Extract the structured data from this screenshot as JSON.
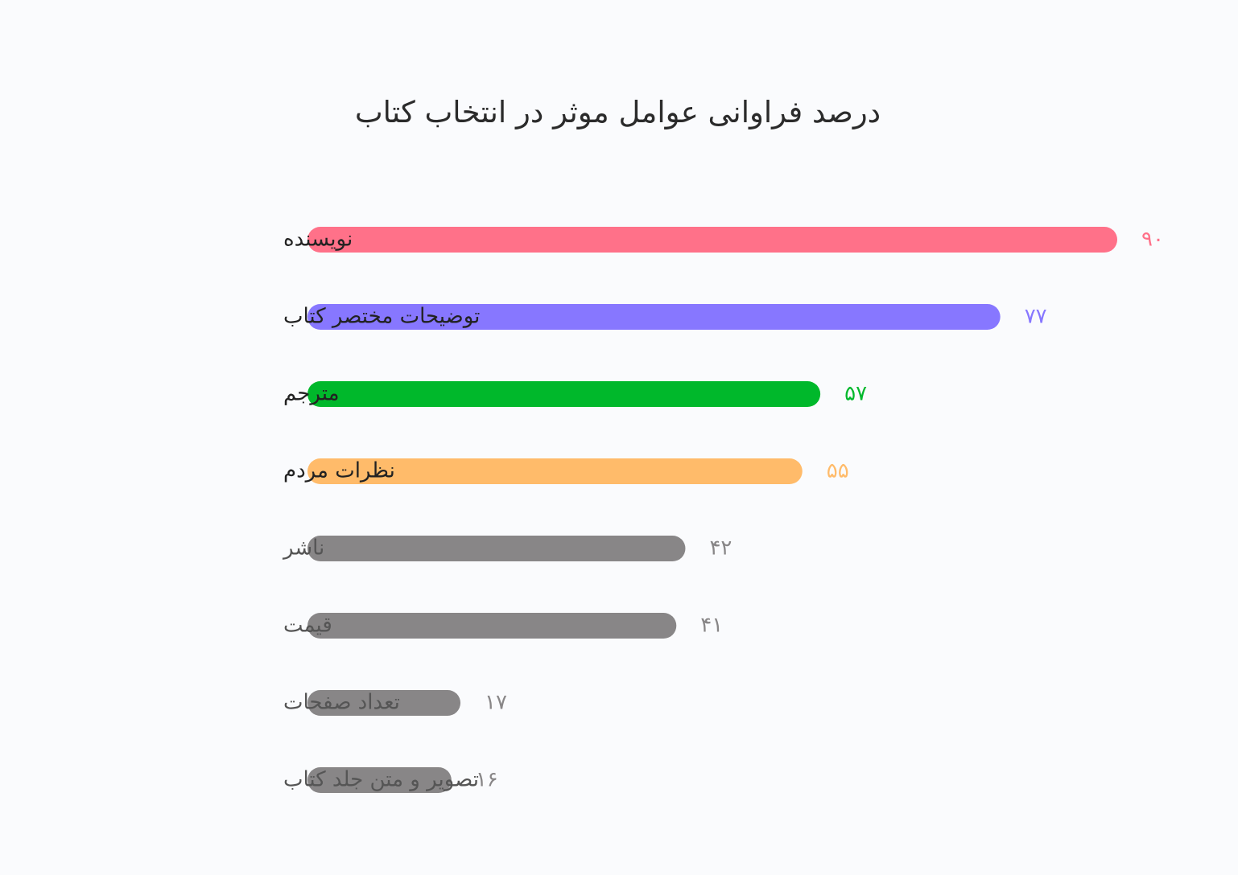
{
  "chart_data": {
    "type": "bar",
    "orientation": "horizontal",
    "title": "درصد فراوانی عوامل موثر در انتخاب کتاب",
    "xlabel": "",
    "ylabel": "",
    "grid": false,
    "legend": "none",
    "xlim": [
      0,
      90
    ],
    "categories": [
      "نویسنده",
      "توضیحات مختصر کتاب",
      "مترجم",
      "نظرات مردم",
      "ناشر",
      "قیمت",
      "تعداد صفحات",
      "تصویر و متن جلد کتاب"
    ],
    "values": [
      90,
      77,
      57,
      55,
      42,
      41,
      17,
      16
    ],
    "value_labels": [
      "۹۰",
      "۷۷",
      "۵۷",
      "۵۵",
      "۴۲",
      "۴۱",
      "۱۷",
      "۱۶"
    ],
    "bar_colors": [
      "#ff7189",
      "#8777ff",
      "#00b82b",
      "#ffbb6a",
      "#888687",
      "#888687",
      "#888687",
      "#888687"
    ],
    "label_colors": [
      "#222222",
      "#222222",
      "#222222",
      "#222222",
      "#555555",
      "#555555",
      "#555555",
      "#555555"
    ]
  }
}
